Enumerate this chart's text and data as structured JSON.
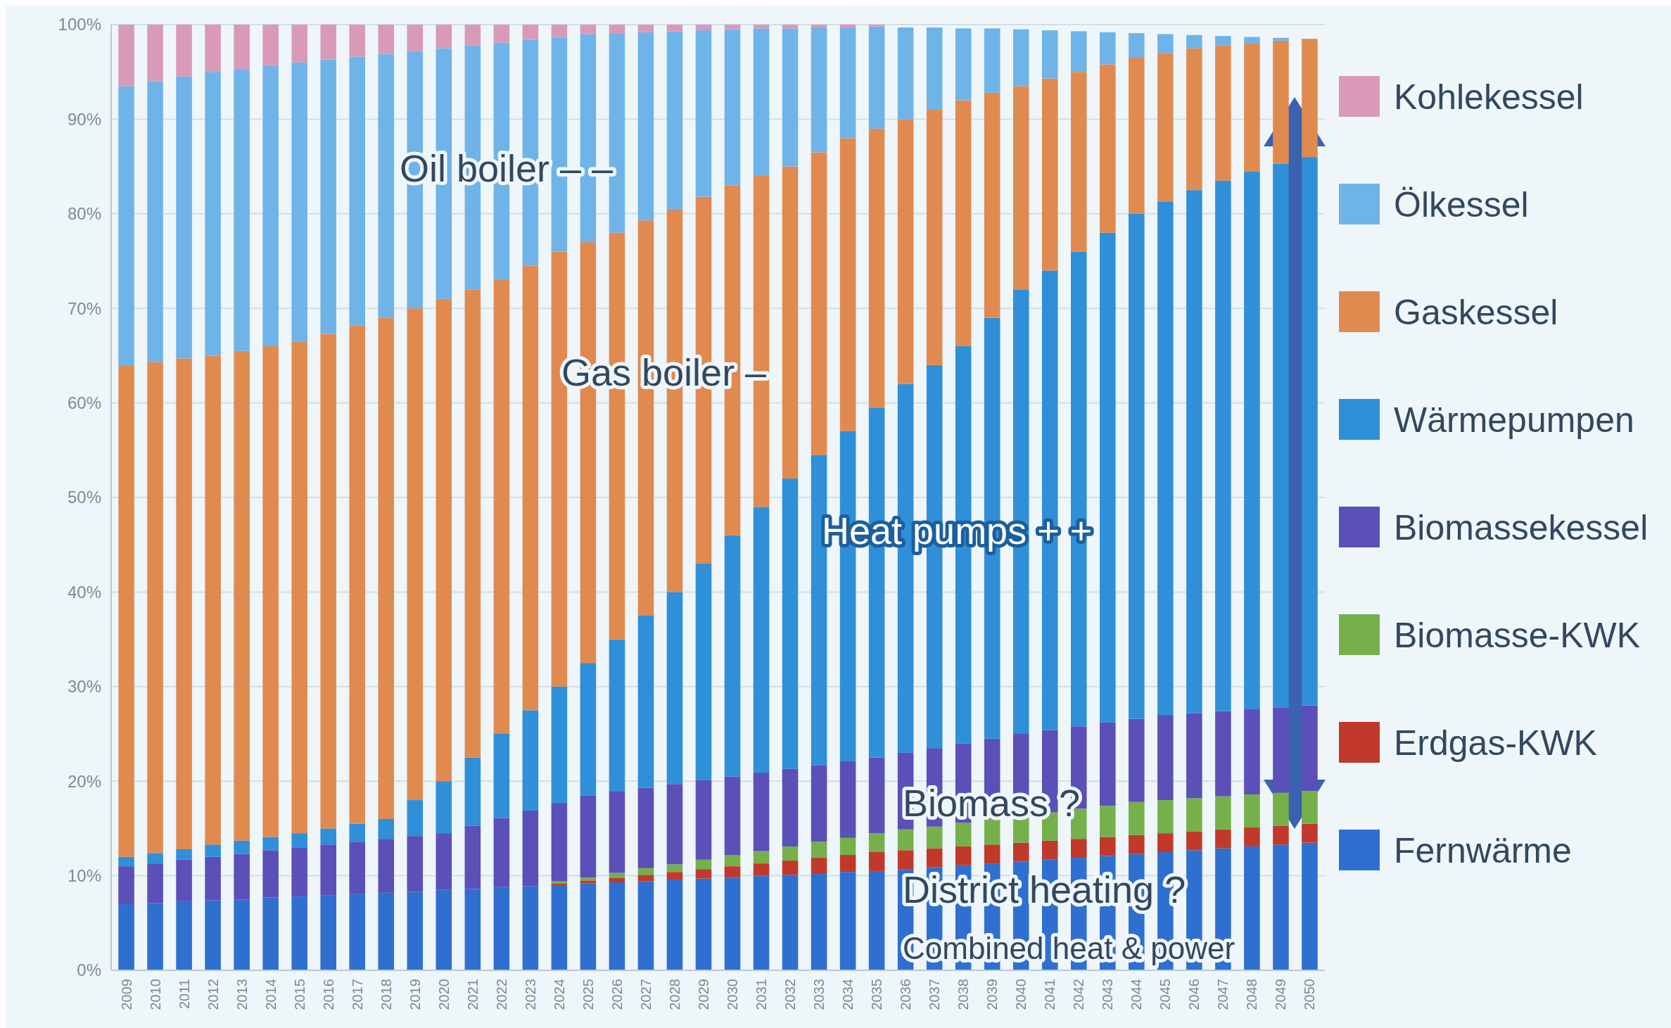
{
  "chart_data": {
    "type": "bar",
    "stacked": true,
    "categories": [
      "2009",
      "2010",
      "2011",
      "2012",
      "2013",
      "2014",
      "2015",
      "2016",
      "2017",
      "2018",
      "2019",
      "2020",
      "2021",
      "2022",
      "2023",
      "2024",
      "2025",
      "2026",
      "2027",
      "2028",
      "2029",
      "2030",
      "2031",
      "2032",
      "2033",
      "2034",
      "2035",
      "2036",
      "2037",
      "2038",
      "2039",
      "2040",
      "2041",
      "2042",
      "2043",
      "2044",
      "2045",
      "2046",
      "2047",
      "2048",
      "2049",
      "2050"
    ],
    "series": [
      {
        "name": "Fernwärme",
        "color": "#2f6fd0",
        "values": [
          7.0,
          7.1,
          7.3,
          7.4,
          7.5,
          7.7,
          7.8,
          7.9,
          8.1,
          8.2,
          8.3,
          8.5,
          8.6,
          8.8,
          8.9,
          9.0,
          9.2,
          9.3,
          9.4,
          9.6,
          9.7,
          9.8,
          10.0,
          10.1,
          10.2,
          10.4,
          10.5,
          10.7,
          10.9,
          11.1,
          11.3,
          11.5,
          11.7,
          11.9,
          12.1,
          12.3,
          12.5,
          12.7,
          12.9,
          13.1,
          13.3,
          13.5
        ]
      },
      {
        "name": "Erdgas-KWK",
        "color": "#c0392b",
        "values": [
          0,
          0,
          0,
          0,
          0,
          0,
          0,
          0,
          0,
          0,
          0,
          0,
          0,
          0,
          0,
          0.2,
          0.3,
          0.5,
          0.7,
          0.8,
          1.0,
          1.2,
          1.3,
          1.5,
          1.7,
          1.8,
          2.0,
          2.0,
          2.0,
          2.0,
          2.0,
          2.0,
          2.0,
          2.0,
          2.0,
          2.0,
          2.0,
          2.0,
          2.0,
          2.0,
          2.0,
          2.0
        ]
      },
      {
        "name": "Biomasse-KWK",
        "color": "#76b04a",
        "values": [
          0,
          0,
          0,
          0,
          0,
          0,
          0,
          0,
          0,
          0,
          0,
          0,
          0,
          0,
          0,
          0.2,
          0.3,
          0.5,
          0.7,
          0.8,
          1.0,
          1.2,
          1.3,
          1.5,
          1.7,
          1.8,
          2.0,
          2.2,
          2.3,
          2.5,
          2.7,
          2.8,
          3.0,
          3.2,
          3.3,
          3.5,
          3.5,
          3.5,
          3.5,
          3.5,
          3.5,
          3.5
        ]
      },
      {
        "name": "Biomassekessel",
        "color": "#5b4fb8",
        "values": [
          4.0,
          4.2,
          4.4,
          4.6,
          4.8,
          5.0,
          5.2,
          5.4,
          5.5,
          5.7,
          5.9,
          6.0,
          6.7,
          7.3,
          8.0,
          8.3,
          8.7,
          8.6,
          8.5,
          8.5,
          8.4,
          8.3,
          8.3,
          8.2,
          8.1,
          8.1,
          8.0,
          8.1,
          8.3,
          8.4,
          8.5,
          8.7,
          8.7,
          8.7,
          8.8,
          8.8,
          9.0,
          9.0,
          9.0,
          9.0,
          9.0,
          9.0
        ]
      },
      {
        "name": "Wärmepumpen",
        "color": "#2f8fd8",
        "values": [
          1.0,
          1.1,
          1.1,
          1.3,
          1.4,
          1.4,
          1.5,
          1.7,
          1.9,
          2.1,
          3.8,
          5.5,
          7.2,
          8.9,
          10.6,
          12.3,
          14.0,
          16.1,
          18.2,
          20.3,
          22.9,
          25.5,
          28.1,
          30.7,
          32.8,
          34.9,
          37.0,
          39.0,
          40.5,
          42.0,
          44.5,
          47.0,
          48.6,
          50.2,
          51.8,
          53.4,
          54.3,
          55.3,
          56.1,
          56.9,
          57.5,
          58.0
        ]
      },
      {
        "name": "Gaskessel",
        "color": "#e08a50",
        "values": [
          52.0,
          51.9,
          51.9,
          51.7,
          51.8,
          51.9,
          52.0,
          52.3,
          52.7,
          53.0,
          52.0,
          51.0,
          49.5,
          48.0,
          47.0,
          46.0,
          44.5,
          43.0,
          41.8,
          40.5,
          38.8,
          37.0,
          35.0,
          33.0,
          32.0,
          31.0,
          29.5,
          28.0,
          27.0,
          26.0,
          23.8,
          21.5,
          20.3,
          19.0,
          17.8,
          16.5,
          15.7,
          15.0,
          14.3,
          13.5,
          13.0,
          12.5
        ]
      },
      {
        "name": "Ölkessel",
        "color": "#6fb4e8",
        "values": [
          29.5,
          29.7,
          29.8,
          30.0,
          29.8,
          29.7,
          29.5,
          29.0,
          28.4,
          27.9,
          27.2,
          26.5,
          25.8,
          25.1,
          23.9,
          22.7,
          22.0,
          21.1,
          19.9,
          18.8,
          17.6,
          16.5,
          15.6,
          14.6,
          13.2,
          11.7,
          10.8,
          9.7,
          8.7,
          7.6,
          6.8,
          6.0,
          5.1,
          4.3,
          3.4,
          2.6,
          2.0,
          1.4,
          1.0,
          0.7,
          0.3,
          0.0
        ]
      },
      {
        "name": "Kohlekessel",
        "color": "#d89ab8",
        "values": [
          6.5,
          6.0,
          5.5,
          5.0,
          4.7,
          4.3,
          4.0,
          3.7,
          3.4,
          3.1,
          2.8,
          2.5,
          2.2,
          1.9,
          1.6,
          1.3,
          1.0,
          0.9,
          0.8,
          0.7,
          0.6,
          0.5,
          0.4,
          0.4,
          0.3,
          0.3,
          0.2,
          0,
          0,
          0,
          0,
          0,
          0,
          0,
          0,
          0,
          0,
          0,
          0,
          0,
          0,
          0
        ]
      }
    ],
    "ylim": [
      0,
      100
    ],
    "yticks": [
      {
        "value": 0,
        "label": "0%"
      },
      {
        "value": 10,
        "label": "10%"
      },
      {
        "value": 20,
        "label": "20%"
      },
      {
        "value": 30,
        "label": "30%"
      },
      {
        "value": 40,
        "label": "40%"
      },
      {
        "value": 50,
        "label": "50%"
      },
      {
        "value": 60,
        "label": "60%"
      },
      {
        "value": 70,
        "label": "70%"
      },
      {
        "value": 80,
        "label": "80%"
      },
      {
        "value": 90,
        "label": "90%"
      },
      {
        "value": 100,
        "label": "100%"
      }
    ],
    "grid": "y",
    "legend": "right",
    "annotations": [
      "Oil boiler – –",
      "Gas boiler –",
      "Heat pumps + +",
      "Biomass ?",
      "District heating ?",
      "Combined heat & power"
    ]
  }
}
